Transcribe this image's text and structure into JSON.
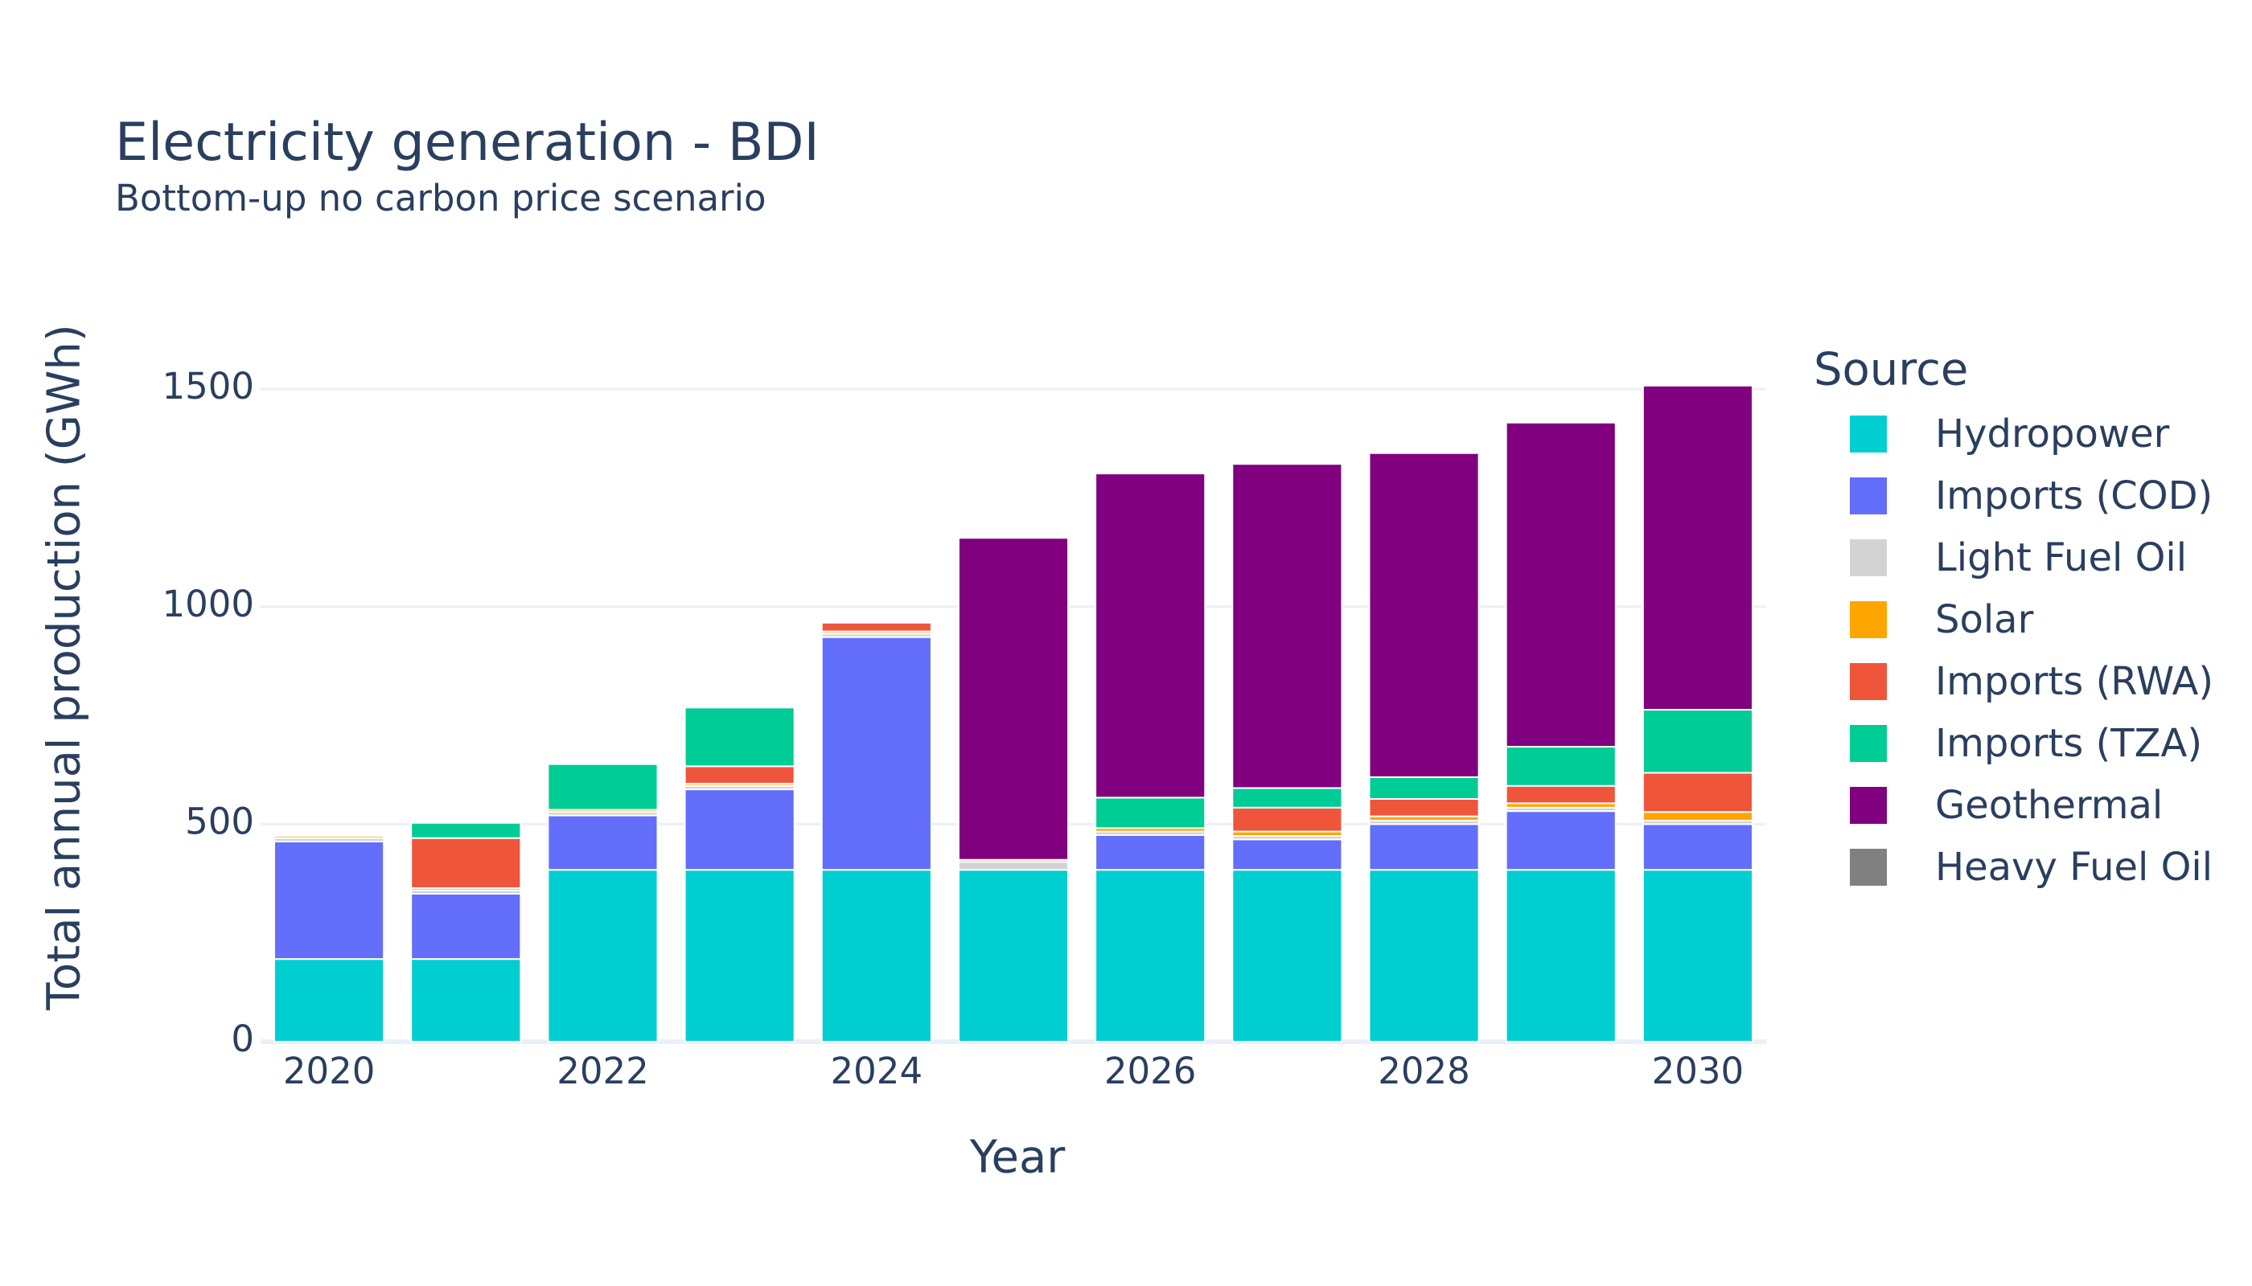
{
  "chart_data": {
    "type": "bar",
    "title": "Electricity generation - BDI",
    "subtitle": "Bottom-up no carbon price scenario",
    "xlabel": "Year",
    "ylabel": "Total annual production (GWh)",
    "ylim": [
      0,
      1600
    ],
    "yticks": [
      0,
      500,
      1000,
      1500
    ],
    "xticks": [
      2020,
      2022,
      2024,
      2026,
      2028,
      2030
    ],
    "grid": true,
    "barmode": "stack",
    "legend_title": "Source",
    "legend_position": "right",
    "categories": [
      2020,
      2021,
      2022,
      2023,
      2024,
      2025,
      2026,
      2027,
      2028,
      2029,
      2030
    ],
    "series": [
      {
        "name": "Hydropower",
        "color": "#00CED1",
        "values": [
          190,
          190,
          395,
          395,
          395,
          395,
          395,
          395,
          395,
          395,
          395
        ]
      },
      {
        "name": "Imports (COD)",
        "color": "#636EFA",
        "values": [
          270,
          150,
          125,
          185,
          535,
          0,
          80,
          70,
          105,
          135,
          105
        ]
      },
      {
        "name": "Light Fuel Oil",
        "color": "#D3D3D3",
        "values": [
          8,
          8,
          8,
          8,
          8,
          18,
          8,
          8,
          8,
          8,
          8
        ]
      },
      {
        "name": "Solar",
        "color": "#FFA500",
        "values": [
          5,
          5,
          5,
          5,
          5,
          5,
          8,
          10,
          10,
          10,
          20
        ]
      },
      {
        "name": "Imports (RWA)",
        "color": "#EF553B",
        "values": [
          0,
          115,
          0,
          40,
          20,
          0,
          0,
          55,
          40,
          40,
          90
        ]
      },
      {
        "name": "Imports (TZA)",
        "color": "#00CC96",
        "values": [
          0,
          35,
          105,
          135,
          0,
          0,
          70,
          45,
          50,
          90,
          145
        ]
      },
      {
        "name": "Geothermal",
        "color": "#800080",
        "values": [
          0,
          0,
          0,
          0,
          0,
          740,
          745,
          745,
          745,
          745,
          745
        ]
      },
      {
        "name": "Heavy Fuel Oil",
        "color": "#808080",
        "values": [
          0,
          0,
          0,
          0,
          0,
          0,
          0,
          0,
          0,
          0,
          0
        ]
      }
    ]
  }
}
